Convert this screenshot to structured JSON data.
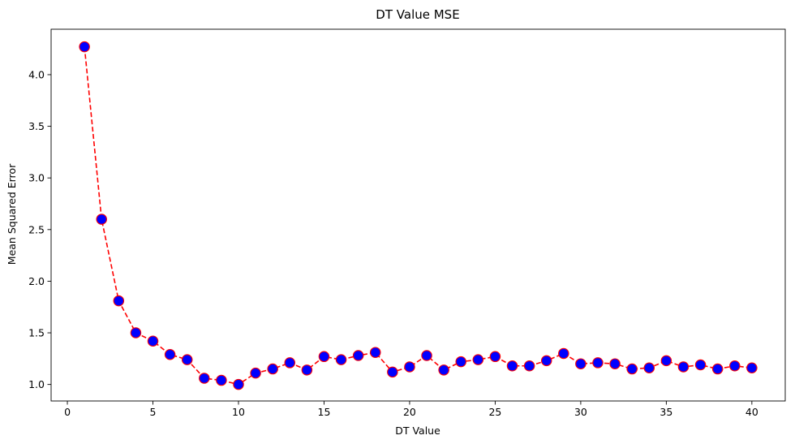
{
  "chart_data": {
    "type": "line",
    "title": "DT Value MSE",
    "xlabel": "DT Value",
    "ylabel": "Mean Squared Error",
    "xlim": [
      -0.95,
      41.95
    ],
    "ylim": [
      0.84,
      4.44
    ],
    "xticks": [
      0,
      5,
      10,
      15,
      20,
      25,
      30,
      35,
      40
    ],
    "yticks": [
      1.0,
      1.5,
      2.0,
      2.5,
      3.0,
      3.5,
      4.0
    ],
    "xtick_labels": [
      "0",
      "5",
      "10",
      "15",
      "20",
      "25",
      "30",
      "35",
      "40"
    ],
    "ytick_labels": [
      "1.0",
      "1.5",
      "2.0",
      "2.5",
      "3.0",
      "3.5",
      "4.0"
    ],
    "grid": false,
    "legend": "none",
    "line_color": "#ff0000",
    "line_style": "dashed",
    "marker_face_color": "#0000ff",
    "marker_edge_color": "#ff0000",
    "x": [
      1,
      2,
      3,
      4,
      5,
      6,
      7,
      8,
      9,
      10,
      11,
      12,
      13,
      14,
      15,
      16,
      17,
      18,
      19,
      20,
      21,
      22,
      23,
      24,
      25,
      26,
      27,
      28,
      29,
      30,
      31,
      32,
      33,
      34,
      35,
      36,
      37,
      38,
      39,
      40
    ],
    "y": [
      4.27,
      2.6,
      1.81,
      1.5,
      1.42,
      1.29,
      1.24,
      1.06,
      1.04,
      1.0,
      1.11,
      1.15,
      1.21,
      1.14,
      1.27,
      1.24,
      1.28,
      1.31,
      1.12,
      1.17,
      1.28,
      1.14,
      1.22,
      1.24,
      1.27,
      1.18,
      1.18,
      1.23,
      1.3,
      1.2,
      1.21,
      1.2,
      1.15,
      1.16,
      1.23,
      1.17,
      1.19,
      1.15,
      1.18,
      1.16
    ]
  }
}
